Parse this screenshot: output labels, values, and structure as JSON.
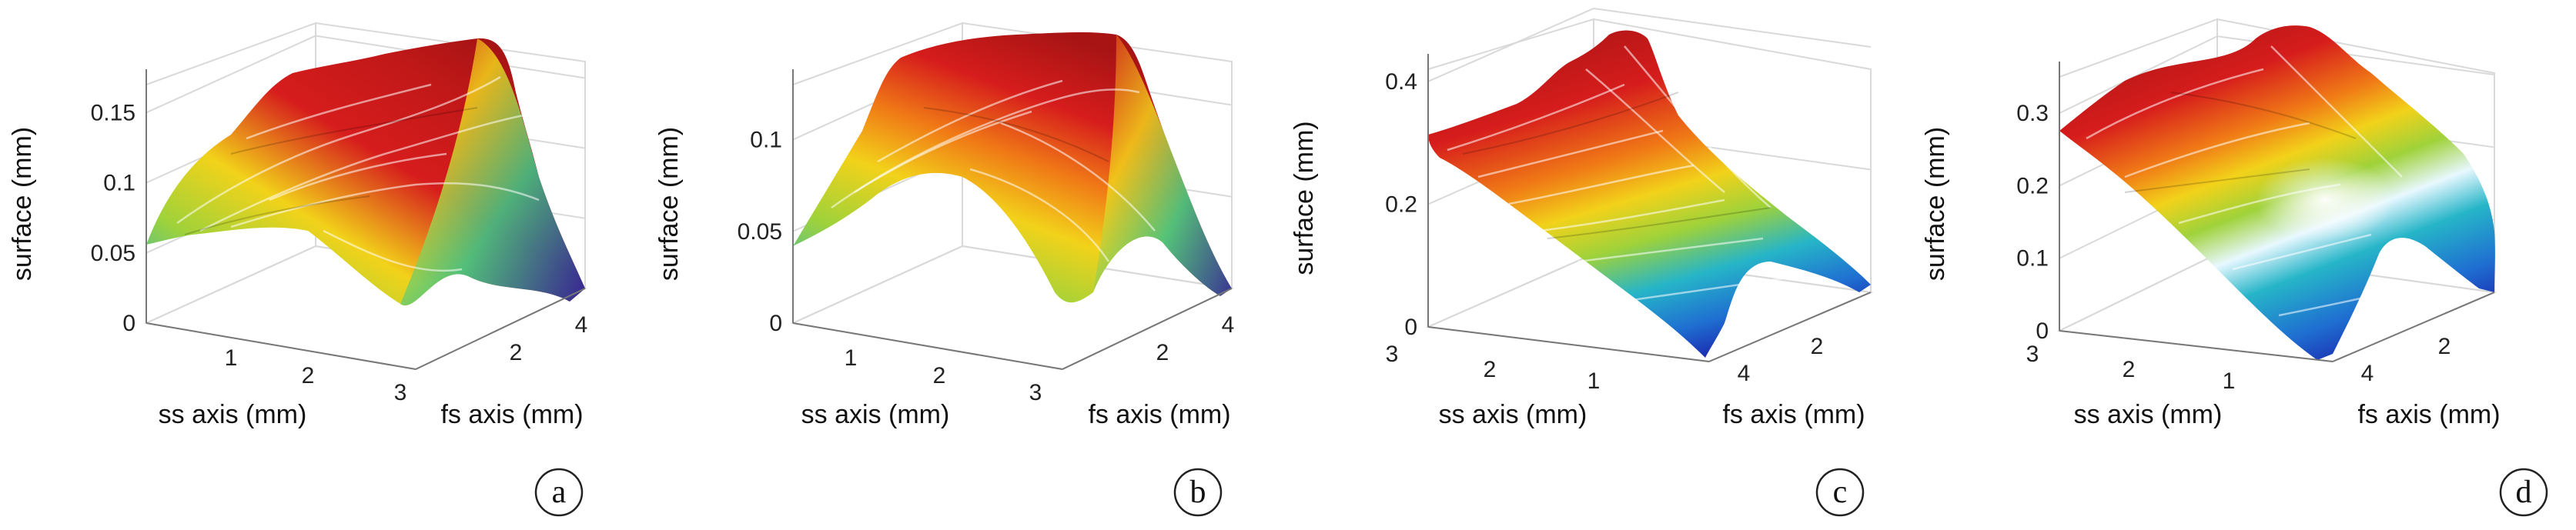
{
  "colors": {
    "colormap": [
      "#1a1aa8",
      "#1f6fd1",
      "#26b5c8",
      "#38c98a",
      "#9fd23a",
      "#f2d21a",
      "#f07a16",
      "#d61c1c",
      "#8f1010"
    ],
    "axes": "#777777",
    "grid": "#d9d9d9"
  },
  "chart_data": [
    {
      "type": "surface",
      "panel": "a",
      "xlabel": "ss axis (mm)",
      "ylabel": "fs axis (mm)",
      "zlabel": "surface (mm)",
      "x_ticks": [
        "1",
        "2",
        "3"
      ],
      "y_ticks": [
        "2",
        "4"
      ],
      "z_ticks": [
        "0",
        "0.05",
        "0.1",
        "0.15"
      ],
      "zlim": [
        0,
        0.17
      ],
      "x_range": [
        0.3,
        3
      ],
      "y_range": [
        0,
        4.5
      ],
      "surface_peak_z": 0.16
    },
    {
      "type": "surface",
      "panel": "b",
      "xlabel": "ss axis (mm)",
      "ylabel": "fs axis (mm)",
      "zlabel": "surface (mm)",
      "x_ticks": [
        "1",
        "2",
        "3"
      ],
      "y_ticks": [
        "2",
        "4"
      ],
      "z_ticks": [
        "0",
        "0.05",
        "0.1"
      ],
      "zlim": [
        0,
        0.13
      ],
      "x_range": [
        0.3,
        3
      ],
      "y_range": [
        0,
        4.5
      ],
      "surface_peak_z": 0.12
    },
    {
      "type": "surface",
      "panel": "c",
      "xlabel": "ss axis (mm)",
      "ylabel": "fs axis (mm)",
      "zlabel": "surface (mm)",
      "x_ticks": [
        "3",
        "2",
        "1"
      ],
      "y_ticks": [
        "4",
        "2"
      ],
      "z_ticks": [
        "0",
        "0.2",
        "0.4"
      ],
      "zlim": [
        0,
        0.42
      ],
      "x_range": [
        0.3,
        3
      ],
      "y_range": [
        0,
        4.5
      ],
      "surface_peak_z": 0.4
    },
    {
      "type": "surface",
      "panel": "d",
      "xlabel": "ss axis (mm)",
      "ylabel": "fs axis (mm)",
      "zlabel": "surface (mm)",
      "x_ticks": [
        "3",
        "2",
        "1"
      ],
      "y_ticks": [
        "4",
        "2"
      ],
      "z_ticks": [
        "0",
        "0.1",
        "0.2",
        "0.3"
      ],
      "zlim": [
        0,
        0.35
      ],
      "x_range": [
        0.3,
        3
      ],
      "y_range": [
        0,
        4.5
      ],
      "surface_peak_z": 0.33
    }
  ]
}
